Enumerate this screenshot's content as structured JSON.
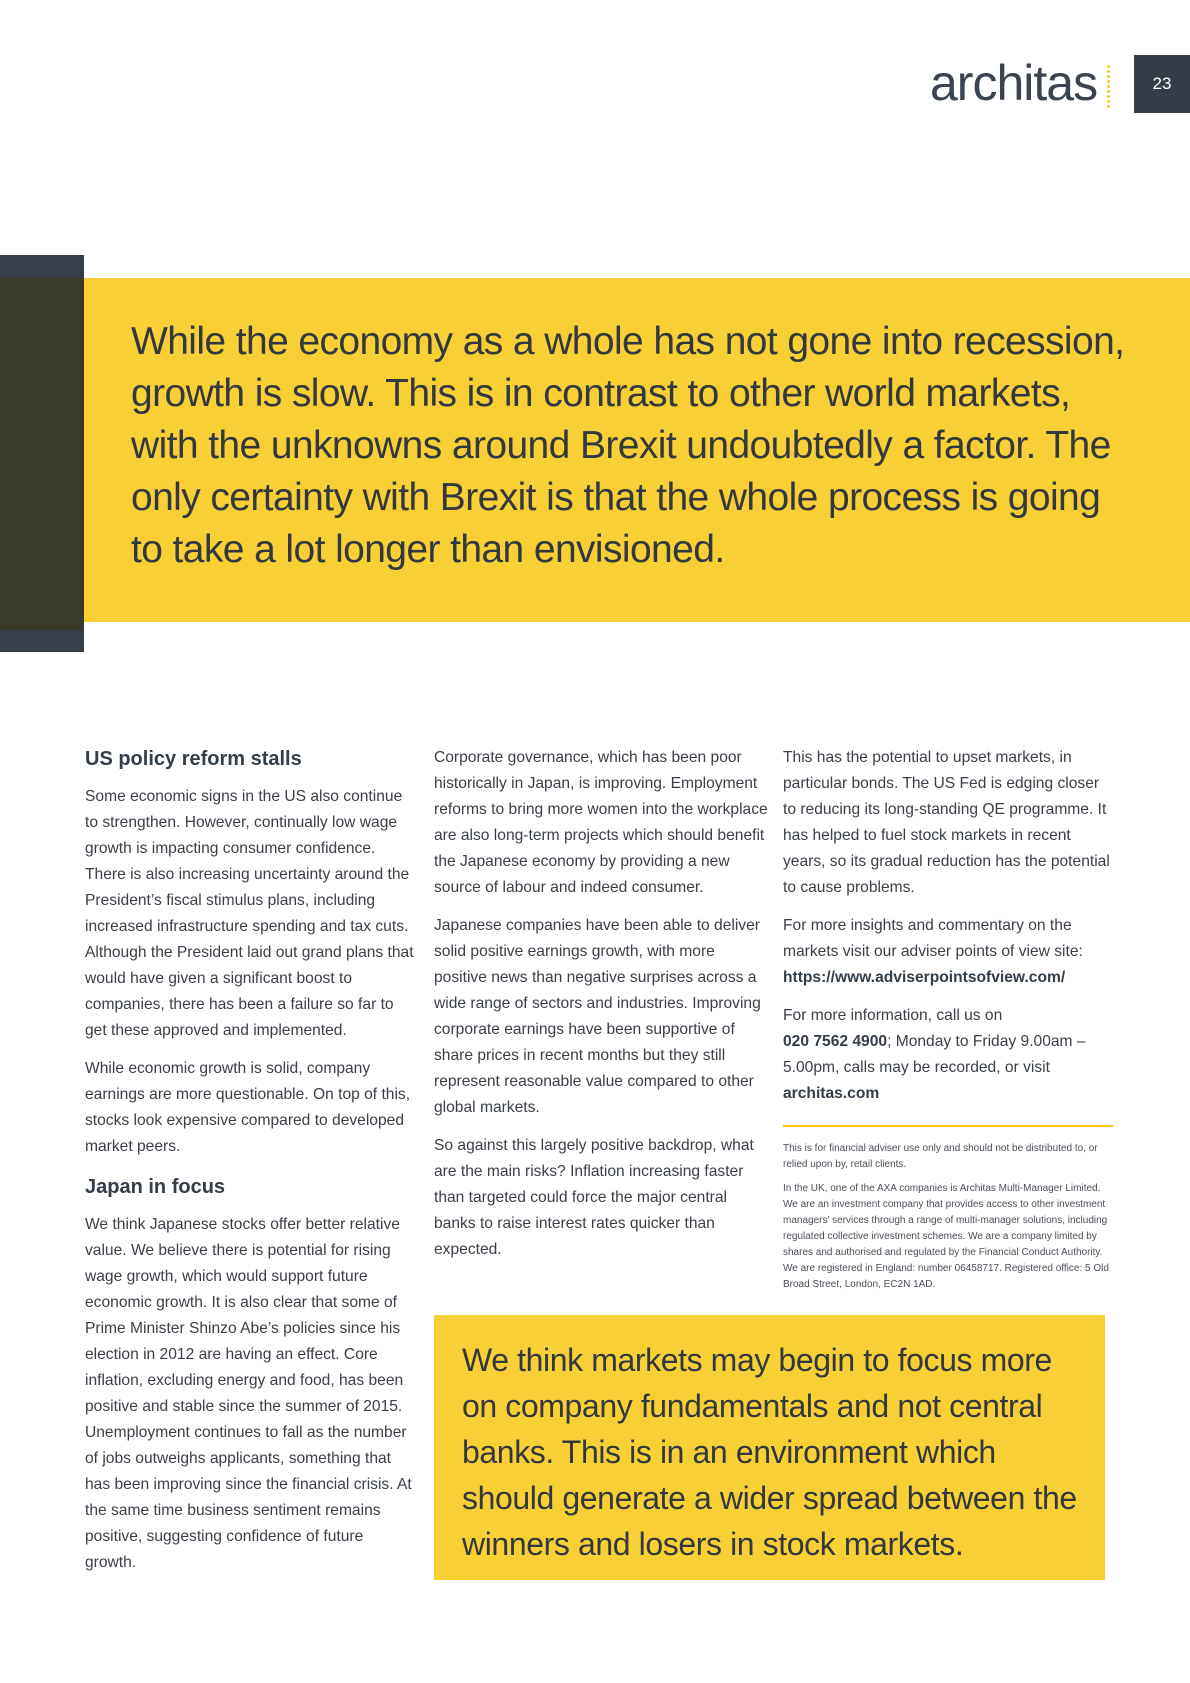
{
  "header": {
    "logo_text": "architas",
    "page_number": "23"
  },
  "hero": {
    "quote": "While the economy as a whole has not gone into recession, growth is slow. This is in contrast to other world markets, with the unknowns around Brexit undoubtedly a factor. The only certainty with Brexit is that the whole process is going to take a lot longer than envisioned."
  },
  "col1": {
    "heading1": "US policy reform stalls",
    "p1": "Some economic signs in the US also continue to strengthen. However, continually low wage growth is impacting consumer confidence. There is also increasing uncertainty around the President’s fiscal stimulus plans, including increased infrastructure spending and tax cuts. Although the President laid out grand plans that would have given a significant boost to companies, there has been a failure so far to get these approved and implemented.",
    "p2": "While economic growth is solid, company earnings are more questionable. On top of this, stocks look expensive compared to developed market peers.",
    "heading2": "Japan in focus",
    "p3": "We think Japanese stocks offer better relative value. We believe there is potential for rising wage growth, which would support future economic growth. It is also clear that some of Prime Minister Shinzo Abe’s policies since his election in 2012 are having an effect. Core inflation, excluding energy and food, has been positive and stable since the summer of 2015. Unemployment continues to fall as the number of jobs outweighs applicants, something that has been improving since the financial crisis. At the same time business sentiment remains positive, suggesting confidence of future growth."
  },
  "col2": {
    "p1": "Corporate governance, which has been poor historically in Japan, is improving. Employment reforms to bring more women into the workplace are also long-term projects which should benefit the Japanese economy by providing a new source of labour and indeed consumer.",
    "p2": "Japanese companies have been able to deliver solid positive earnings growth, with more positive news than negative surprises across a wide range of sectors and industries. Improving corporate earnings have been supportive of share prices in recent months but they still represent reasonable value compared to other global markets.",
    "p3": "So against this largely positive backdrop, what are the main risks? Inflation increasing faster than targeted could force the major central banks to raise interest rates quicker than expected."
  },
  "col3": {
    "p1": "This has the potential to upset markets, in particular bonds. The US Fed is edging closer to reducing its long-standing QE programme. It has helped to fuel stock markets in recent years, so its gradual reduction has the potential to cause problems.",
    "p2_text": "For more insights and commentary on the markets visit our adviser points of view site:",
    "p2_link": "https://www.adviserpointsofview.com/",
    "p3_text": "For more information, call us on",
    "p3_phone": "020 7562 4900",
    "p3_hours": "; Monday to Friday 9.00am – 5.00pm, calls may be recorded, or visit",
    "p3_site": "architas.com",
    "disclaimer1": "This is for financial adviser use only and should not be distributed to, or relied upon by, retail clients.",
    "disclaimer2": "In the UK, one of the AXA companies is Architas Multi-Manager Limited. We are an investment company that provides access to other investment managers’ services through a range of multi-manager solutions, including regulated collective investment schemes. We are a company limited by shares and authorised and regulated by the Financial Conduct Authority. We are registered in England: number 06458717. Registered office: 5 Old Broad Street, London, EC2N 1AD."
  },
  "callout": {
    "text": "We think markets may begin to focus more on company fundamentals and not central banks. This is in an environment which should generate a wider spread between the winners and losers in stock markets."
  },
  "colors": {
    "accent_yellow": "#f9cf36",
    "dark_slate": "#333e48",
    "dark_olive": "#3a3a2b"
  }
}
